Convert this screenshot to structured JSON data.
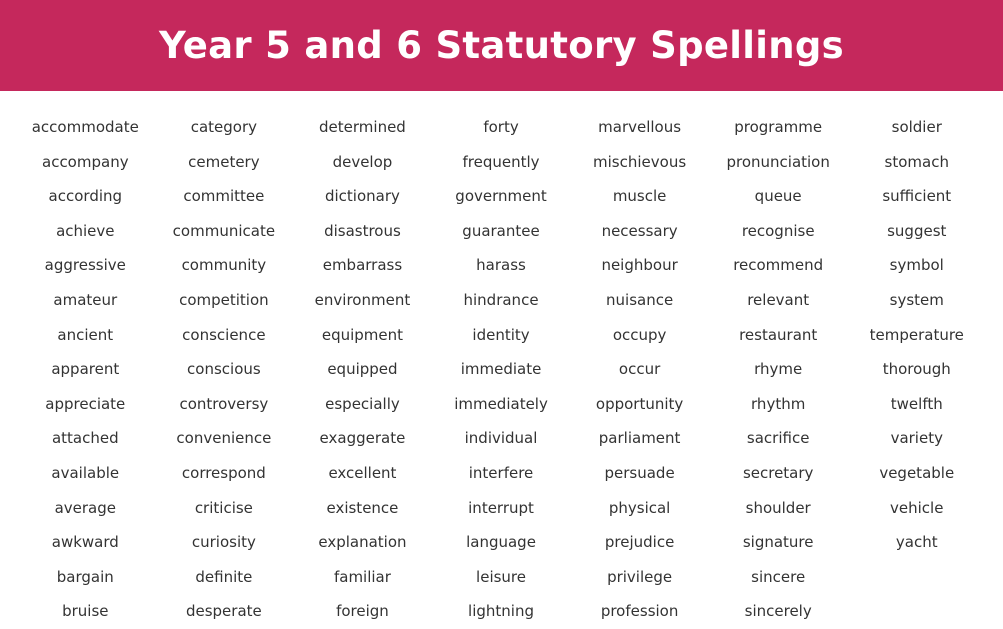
{
  "header": {
    "title": "Year 5 and 6 Statutory Spellings",
    "background_color": "#c5285c"
  },
  "columns": [
    [
      "accommodate",
      "accompany",
      "according",
      "achieve",
      "aggressive",
      "amateur",
      "ancient",
      "apparent",
      "appreciate",
      "attached",
      "available",
      "average",
      "awkward",
      "bargain",
      "bruise"
    ],
    [
      "category",
      "cemetery",
      "committee",
      "communicate",
      "community",
      "competition",
      "conscience",
      "conscious",
      "controversy",
      "convenience",
      "correspond",
      "criticise",
      "curiosity",
      "definite",
      "desperate"
    ],
    [
      "determined",
      "develop",
      "dictionary",
      "disastrous",
      "embarrass",
      "environment",
      "equipment",
      "equipped",
      "especially",
      "exaggerate",
      "excellent",
      "existence",
      "explanation",
      "familiar",
      "foreign"
    ],
    [
      "forty",
      "frequently",
      "government",
      "guarantee",
      "harass",
      "hindrance",
      "identity",
      "immediate",
      "immediately",
      "individual",
      "interfere",
      "interrupt",
      "language",
      "leisure",
      "lightning"
    ],
    [
      "marvellous",
      "mischievous",
      "muscle",
      "necessary",
      "neighbour",
      "nuisance",
      "occupy",
      "occur",
      "opportunity",
      "parliament",
      "persuade",
      "physical",
      "prejudice",
      "privilege",
      "profession"
    ],
    [
      "programme",
      "pronunciation",
      "queue",
      "recognise",
      "recommend",
      "relevant",
      "restaurant",
      "rhyme",
      "rhythm",
      "sacrifice",
      "secretary",
      "shoulder",
      "signature",
      "sincere",
      "sincerely"
    ],
    [
      "soldier",
      "stomach",
      "sufficient",
      "suggest",
      "symbol",
      "system",
      "temperature",
      "thorough",
      "twelfth",
      "variety",
      "vegetable",
      "vehicle",
      "yacht"
    ]
  ]
}
